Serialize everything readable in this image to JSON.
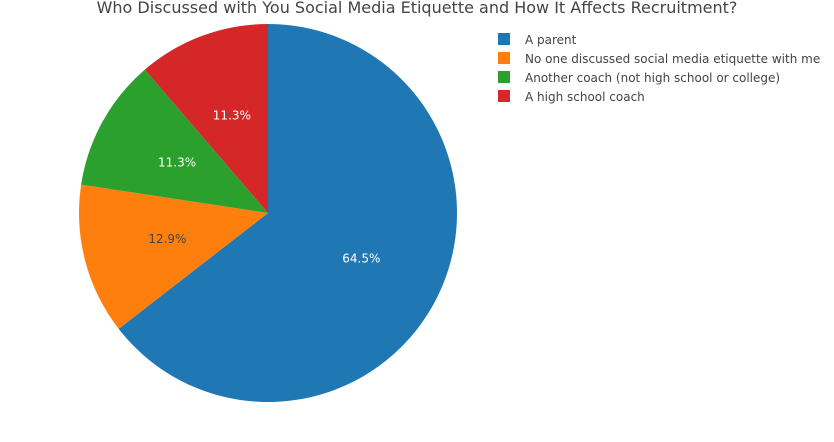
{
  "chart_data": {
    "type": "pie",
    "title": "Who Discussed with You Social Media Etiquette and How It Affects Recruitment?",
    "legend_placement": "top-right",
    "slices": [
      {
        "label": "A parent",
        "value": 64.5,
        "text": "64.5%",
        "color": "#1f77b4",
        "text_color": "#ffffff"
      },
      {
        "label": "No one discussed social media etiquette with me",
        "value": 12.9,
        "text": "12.9%",
        "color": "#ff7f0e",
        "text_color": "#444444"
      },
      {
        "label": "Another coach (not high school or college)",
        "value": 11.3,
        "text": "11.3%",
        "color": "#2ca02c",
        "text_color": "#ffffff"
      },
      {
        "label": "A high school coach",
        "value": 11.3,
        "text": "11.3%",
        "color": "#d62728",
        "text_color": "#ffffff"
      }
    ]
  }
}
